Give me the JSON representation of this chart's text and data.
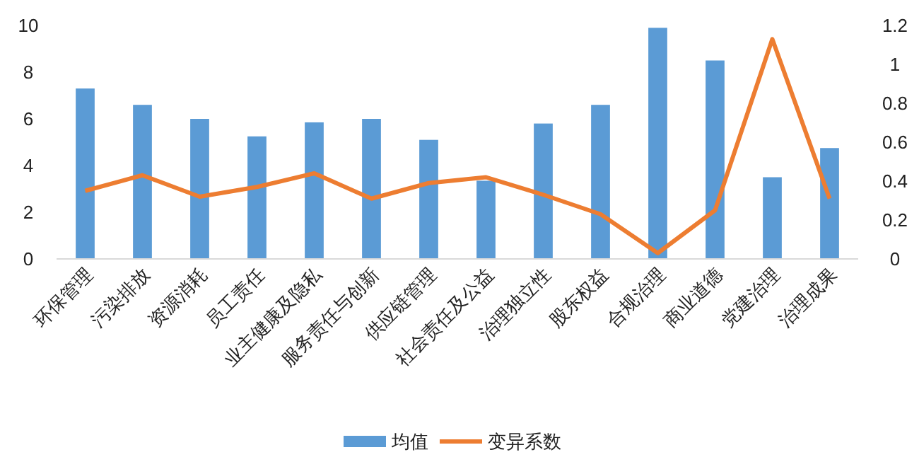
{
  "chart_data": {
    "type": "bar",
    "categories": [
      "环保管理",
      "污染排放",
      "资源消耗",
      "员工责任",
      "业主健康及隐私",
      "服务责任与创新",
      "供应链管理",
      "社会责任及公益",
      "治理独立性",
      "股东权益",
      "合规治理",
      "商业道德",
      "党建治理",
      "治理成果"
    ],
    "series": [
      {
        "name": "均值",
        "color": "#5b9bd5",
        "values": [
          7.3,
          6.6,
          6.0,
          5.25,
          5.85,
          6.0,
          5.1,
          3.35,
          5.8,
          6.6,
          9.9,
          8.5,
          3.5,
          4.75
        ]
      },
      {
        "name": "变异系数",
        "type": "line",
        "axis": "y2",
        "color": "#ed7d31",
        "values": [
          0.35,
          0.43,
          0.32,
          0.37,
          0.44,
          0.31,
          0.39,
          0.42,
          0.33,
          0.23,
          0.03,
          0.25,
          1.13,
          0.31
        ]
      }
    ],
    "ylim": [
      0,
      10
    ],
    "yticks": [
      0,
      2,
      4,
      6,
      8,
      10
    ],
    "y2lim": [
      0,
      1.2
    ],
    "y2ticks": [
      0,
      {
        "value": 0.2,
        "label": "0.2"
      },
      {
        "value": 0.4,
        "label": "0.4"
      },
      {
        "value": 0.6,
        "label": "0.6"
      },
      {
        "value": 0.8,
        "label": "0.8"
      },
      1,
      {
        "value": 1.2,
        "label": "1.2"
      }
    ],
    "legend": "bottom",
    "grid": false,
    "marker": "none",
    "line_style": "solid"
  }
}
